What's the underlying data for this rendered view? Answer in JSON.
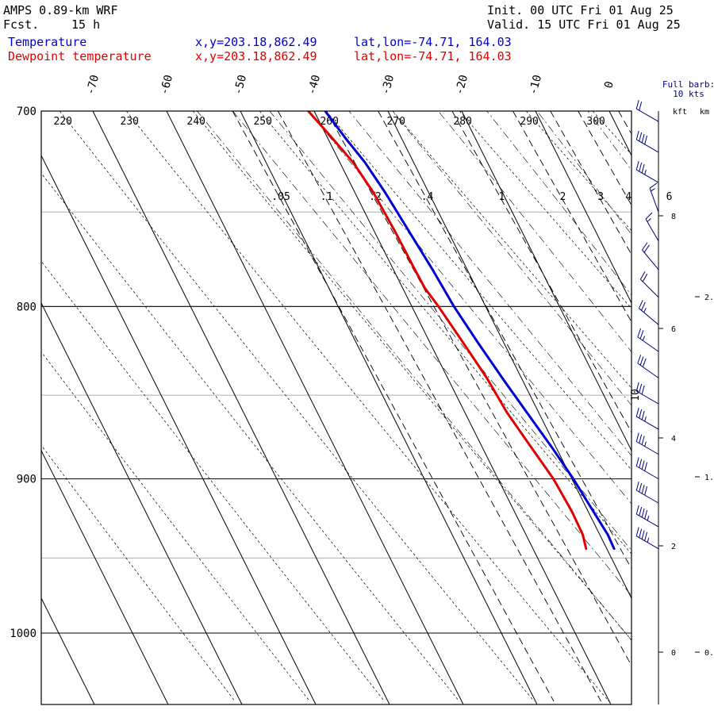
{
  "header": {
    "model": "AMPS 0.89-km WRF",
    "fcst_label": "Fcst.",
    "fcst_value": "15 h",
    "init": "Init. 00 UTC Fri 01 Aug 25",
    "valid": "Valid. 15 UTC Fri 01 Aug 25"
  },
  "legend": {
    "temperature": {
      "label": "Temperature",
      "xy": "x,y=203.18,862.49",
      "latlon": "lat,lon=-74.71, 164.03",
      "color": "#0000d0"
    },
    "dewpoint": {
      "label": "Dewpoint temperature",
      "xy": "x,y=203.18,862.49",
      "latlon": "lat,lon=-74.71, 164.03",
      "color": "#e00000"
    }
  },
  "barb_legend": {
    "line1": "Full barb:",
    "line2": "10 kts"
  },
  "height_axis": {
    "kft_label": "kft",
    "km_label": "km"
  },
  "chart_data": {
    "type": "line",
    "subtype": "skew-T log-p diagram",
    "y_axis": {
      "scale": "log",
      "ylim": [
        1040,
        700
      ],
      "ticks": [
        700,
        800,
        900,
        1000
      ]
    },
    "x_axis": {
      "temperature_ticks": [
        -70,
        -60,
        -50,
        -40,
        -30,
        -20,
        -10,
        0
      ]
    },
    "isentrope_labels": [
      220,
      230,
      240,
      250,
      260,
      270,
      280,
      290,
      300
    ],
    "mixing_ratio_labels": [
      ".05",
      ".1",
      ".2",
      ".4",
      "1",
      "2",
      "3",
      "4",
      "6",
      "10"
    ],
    "kft_ticks": [
      0,
      2,
      4,
      6,
      8
    ],
    "km_ticks": [
      "0.",
      "1.",
      "2."
    ],
    "series": [
      {
        "name": "Temperature",
        "color": "#0000d0",
        "points": [
          [
            944,
            -29.0
          ],
          [
            935,
            -28.9
          ],
          [
            920,
            -29.3
          ],
          [
            900,
            -29.8
          ],
          [
            880,
            -30.6
          ],
          [
            860,
            -31.6
          ],
          [
            840,
            -32.6
          ],
          [
            820,
            -33.5
          ],
          [
            800,
            -34.3
          ],
          [
            780,
            -34.7
          ],
          [
            760,
            -35.3
          ],
          [
            740,
            -35.9
          ],
          [
            725,
            -36.6
          ],
          [
            713,
            -37.6
          ],
          [
            700,
            -38.5
          ]
        ]
      },
      {
        "name": "Dewpoint temperature",
        "color": "#e00000",
        "points": [
          [
            944,
            -32.8
          ],
          [
            935,
            -32.3
          ],
          [
            920,
            -32.2
          ],
          [
            900,
            -32.5
          ],
          [
            880,
            -33.4
          ],
          [
            860,
            -34.3
          ],
          [
            840,
            -34.7
          ],
          [
            820,
            -35.5
          ],
          [
            800,
            -36.4
          ],
          [
            790,
            -37.0
          ],
          [
            780,
            -37.1
          ],
          [
            760,
            -37.2
          ],
          [
            740,
            -37.5
          ],
          [
            725,
            -38.2
          ],
          [
            713,
            -39.4
          ],
          [
            700,
            -40.8
          ]
        ]
      }
    ],
    "wind_barbs": [
      {
        "p": 944,
        "dir": 300,
        "spd": 45
      },
      {
        "p": 930,
        "dir": 300,
        "spd": 45
      },
      {
        "p": 915,
        "dir": 300,
        "spd": 40
      },
      {
        "p": 900,
        "dir": 300,
        "spd": 40
      },
      {
        "p": 885,
        "dir": 300,
        "spd": 35
      },
      {
        "p": 870,
        "dir": 300,
        "spd": 35
      },
      {
        "p": 855,
        "dir": 300,
        "spd": 30
      },
      {
        "p": 840,
        "dir": 305,
        "spd": 30
      },
      {
        "p": 825,
        "dir": 305,
        "spd": 25
      },
      {
        "p": 810,
        "dir": 310,
        "spd": 25
      },
      {
        "p": 795,
        "dir": 315,
        "spd": 20
      },
      {
        "p": 780,
        "dir": 320,
        "spd": 20
      },
      {
        "p": 765,
        "dir": 330,
        "spd": 15
      },
      {
        "p": 750,
        "dir": 340,
        "spd": 15
      },
      {
        "p": 735,
        "dir": 300,
        "spd": 35
      },
      {
        "p": 720,
        "dir": 300,
        "spd": 40
      },
      {
        "p": 705,
        "dir": 300,
        "spd": 20
      }
    ]
  }
}
